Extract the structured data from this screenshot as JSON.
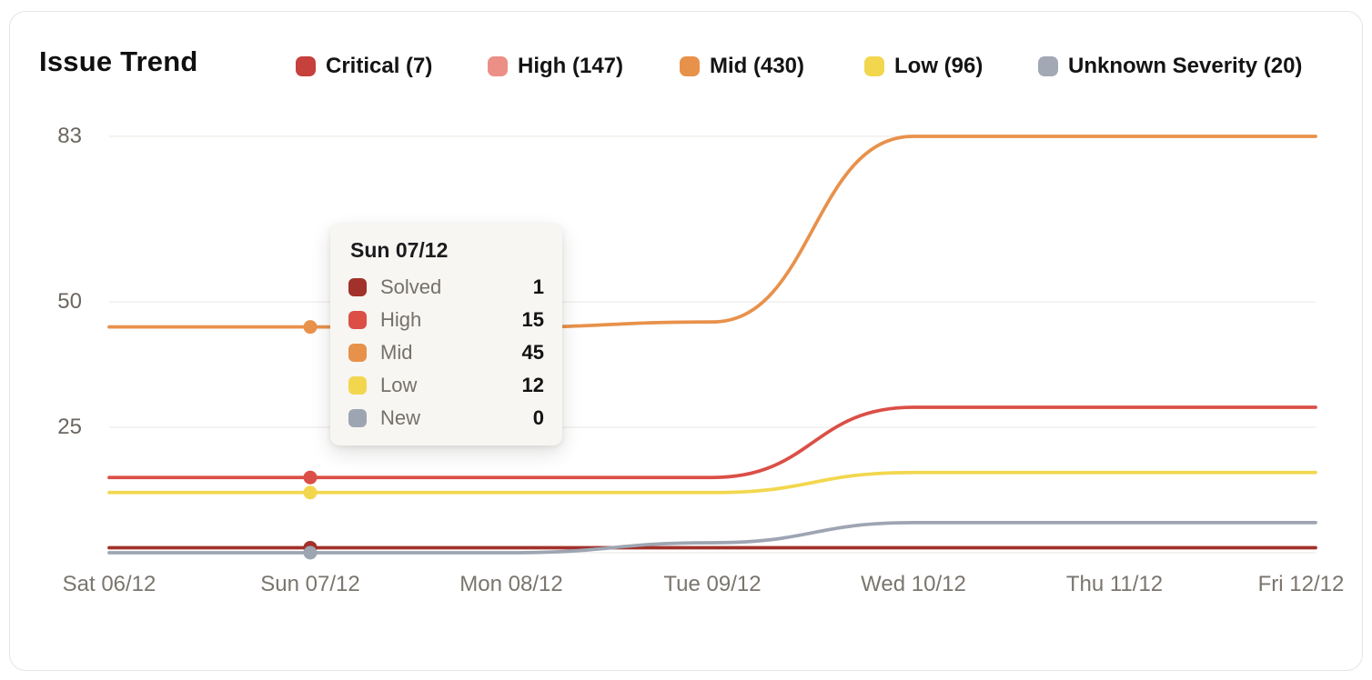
{
  "header": {
    "title": "Issue Trend",
    "legend": [
      {
        "label": "Critical (7)",
        "color": "#c6403c"
      },
      {
        "label": "High (147)",
        "color": "#ec8f86"
      },
      {
        "label": "Mid (430)",
        "color": "#e8914b"
      },
      {
        "label": "Low (96)",
        "color": "#f2d74e"
      },
      {
        "label": "Unknown Severity (20)",
        "color": "#a2a9b5"
      }
    ]
  },
  "chart_data": {
    "type": "line",
    "title": "Issue Trend",
    "categories": [
      "Sat 06/12",
      "Sun 07/12",
      "Mon 08/12",
      "Tue 09/12",
      "Wed 10/12",
      "Thu 11/12",
      "Fri 12/12"
    ],
    "series": [
      {
        "name": "Solved",
        "color": "#a1312a",
        "values": [
          1,
          1,
          1,
          1,
          1,
          1,
          1
        ]
      },
      {
        "name": "High",
        "color": "#db4f46",
        "values": [
          15,
          15,
          15,
          15,
          29,
          29,
          29
        ]
      },
      {
        "name": "Mid",
        "color": "#e8914b",
        "values": [
          45,
          45,
          45,
          46,
          83,
          83,
          83
        ]
      },
      {
        "name": "Low",
        "color": "#f2d74e",
        "values": [
          12,
          12,
          12,
          12,
          16,
          16,
          16
        ]
      },
      {
        "name": "New",
        "color": "#9ea5b2",
        "values": [
          0,
          0,
          0,
          2,
          6,
          6,
          6
        ]
      }
    ],
    "y_ticks": [
      83,
      50,
      25
    ],
    "ylim": [
      0,
      83
    ],
    "grid": true,
    "legend_position": "top",
    "highlighted_x": "Sun 07/12",
    "gridline_color": "#f1efec"
  },
  "tooltip": {
    "title": "Sun 07/12",
    "rows": [
      {
        "label": "Solved",
        "value": "1",
        "color": "#a1312a"
      },
      {
        "label": "High",
        "value": "15",
        "color": "#db4f46"
      },
      {
        "label": "Mid",
        "value": "45",
        "color": "#e8914b"
      },
      {
        "label": "Low",
        "value": "12",
        "color": "#f2d74e"
      },
      {
        "label": "New",
        "value": "0",
        "color": "#9ea5b2"
      }
    ]
  }
}
